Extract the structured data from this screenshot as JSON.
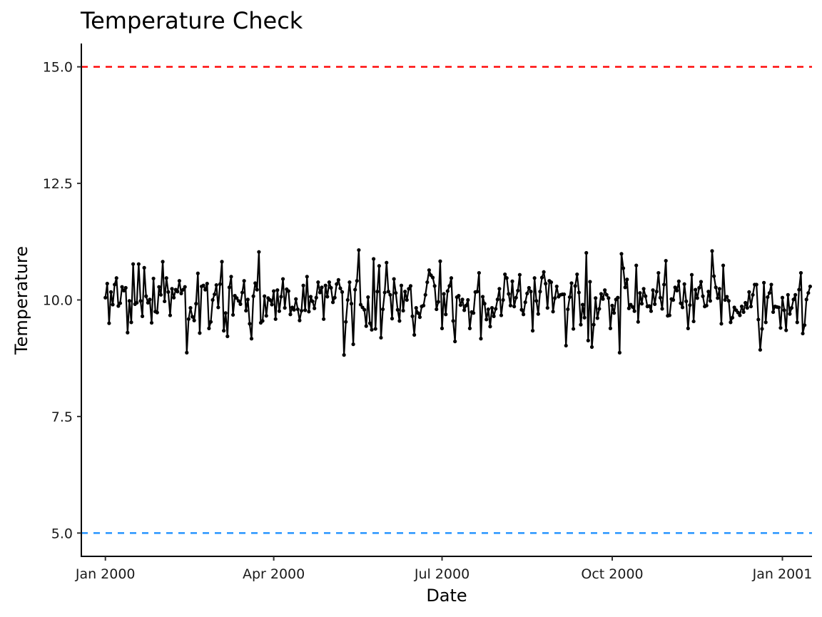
{
  "chart_data": {
    "type": "line",
    "title": "Temperature Check",
    "xlabel": "Date",
    "ylabel": "Temperature",
    "x_start": "2000-01-01",
    "x_ticks": [
      {
        "date": "2000-01-01",
        "label": "Jan 2000"
      },
      {
        "date": "2000-04-01",
        "label": "Apr 2000"
      },
      {
        "date": "2000-07-01",
        "label": "Jul 2000"
      },
      {
        "date": "2000-10-01",
        "label": "Oct 2000"
      },
      {
        "date": "2001-01-01",
        "label": "Jan 2001"
      }
    ],
    "xlim": [
      "1999-12-19",
      "2001-01-17"
    ],
    "ylim": [
      4.5,
      15.5
    ],
    "y_ticks": [
      5.0,
      7.5,
      10.0,
      12.5,
      15.0
    ],
    "y_tick_labels": [
      "5.0",
      "7.5",
      "10.0",
      "12.5",
      "15.0"
    ],
    "grid": false,
    "reference_lines": [
      {
        "y": 15.0,
        "color": "#ff0000",
        "style": "dashed"
      },
      {
        "y": 5.0,
        "color": "#1e90ff",
        "style": "dashed"
      }
    ],
    "series": [
      {
        "color": "#000000",
        "y": [
          10.05,
          10.35,
          9.5,
          10.17,
          9.9,
          10.33,
          10.47,
          9.87,
          9.93,
          10.28,
          10.2,
          10.26,
          9.3,
          9.98,
          9.52,
          10.77,
          9.91,
          9.94,
          10.77,
          9.98,
          9.65,
          10.69,
          10.08,
          9.94,
          10.01,
          9.51,
          10.46,
          9.75,
          9.73,
          10.28,
          10.11,
          10.82,
          9.97,
          10.47,
          10.17,
          9.67,
          10.24,
          10.05,
          10.22,
          10.18,
          10.41,
          10.14,
          10.22,
          10.28,
          8.87,
          9.59,
          9.83,
          9.64,
          9.56,
          9.92,
          10.57,
          9.29,
          10.29,
          10.31,
          10.22,
          10.35,
          9.39,
          9.53,
          10.0,
          10.12,
          10.32,
          9.84,
          10.34,
          10.82,
          9.34,
          9.72,
          9.22,
          10.27,
          10.5,
          9.68,
          10.09,
          10.04,
          9.98,
          9.91,
          10.16,
          10.41,
          9.77,
          10.01,
          9.49,
          9.17,
          10.08,
          10.36,
          10.22,
          11.03,
          9.51,
          9.55,
          10.08,
          9.66,
          10.04,
          10.0,
          9.9,
          10.19,
          9.59,
          10.21,
          9.76,
          10.07,
          10.45,
          9.83,
          10.23,
          10.19,
          9.69,
          9.84,
          9.79,
          10.02,
          9.8,
          9.56,
          9.77,
          10.31,
          9.78,
          10.5,
          9.75,
          10.07,
          9.97,
          9.82,
          10.05,
          10.38,
          10.16,
          10.27,
          9.59,
          10.31,
          10.07,
          10.38,
          10.26,
          9.95,
          10.05,
          10.34,
          10.43,
          10.25,
          10.17,
          8.82,
          9.53,
          10.0,
          10.38,
          9.92,
          9.05,
          10.22,
          10.41,
          11.07,
          9.9,
          9.84,
          9.79,
          9.44,
          10.06,
          9.5,
          9.36,
          10.88,
          9.38,
          10.18,
          10.73,
          9.19,
          9.8,
          10.16,
          10.8,
          10.18,
          10.11,
          9.6,
          10.45,
          10.15,
          9.79,
          9.55,
          10.31,
          9.77,
          10.18,
          10.0,
          10.24,
          10.3,
          9.65,
          9.25,
          9.83,
          9.72,
          9.63,
          9.86,
          9.88,
          10.11,
          10.38,
          10.64,
          10.53,
          10.48,
          10.3,
          9.8,
          9.96,
          10.83,
          9.39,
          10.13,
          9.69,
          10.19,
          10.3,
          10.47,
          9.55,
          9.11,
          10.06,
          10.09,
          9.89,
          10.01,
          9.78,
          9.88,
          10.0,
          9.39,
          9.74,
          9.72,
          10.17,
          10.18,
          10.58,
          9.17,
          10.07,
          9.92,
          9.58,
          9.8,
          9.43,
          9.83,
          9.65,
          9.81,
          10.01,
          10.24,
          9.67,
          10.0,
          10.55,
          10.47,
          10.13,
          9.88,
          10.4,
          9.86,
          10.05,
          10.2,
          10.54,
          9.79,
          9.69,
          9.95,
          10.14,
          10.26,
          10.18,
          9.34,
          10.47,
          9.98,
          9.7,
          10.18,
          10.48,
          10.6,
          10.35,
          9.83,
          10.41,
          10.38,
          9.75,
          10.04,
          10.29,
          10.07,
          10.11,
          10.12,
          10.12,
          9.02,
          9.8,
          10.06,
          10.36,
          9.38,
          10.3,
          10.55,
          10.16,
          9.47,
          9.9,
          9.62,
          11.01,
          9.13,
          10.39,
          8.99,
          9.47,
          10.04,
          9.61,
          9.81,
          10.13,
          10.02,
          10.21,
          10.11,
          10.04,
          9.39,
          9.88,
          9.72,
          10.01,
          10.05,
          8.87,
          10.99,
          10.68,
          10.27,
          10.44,
          9.82,
          9.9,
          9.85,
          9.76,
          10.74,
          9.53,
          10.15,
          9.92,
          10.24,
          10.08,
          9.86,
          9.87,
          9.76,
          10.21,
          9.91,
          10.18,
          10.58,
          10.05,
          9.81,
          10.33,
          10.84,
          9.66,
          9.67,
          10.02,
          10.0,
          10.27,
          10.2,
          10.4,
          9.93,
          9.84,
          10.34,
          9.97,
          9.39,
          9.89,
          10.54,
          9.54,
          10.22,
          10.04,
          10.26,
          10.39,
          10.08,
          9.86,
          9.88,
          10.18,
          9.98,
          11.05,
          10.51,
          10.27,
          10.04,
          10.24,
          9.49,
          10.74,
          10.0,
          10.07,
          9.98,
          9.52,
          9.62,
          9.84,
          9.78,
          9.73,
          9.67,
          9.86,
          9.74,
          9.94,
          9.83,
          10.17,
          9.86,
          10.11,
          10.33,
          10.33,
          9.58,
          8.93,
          9.38,
          10.37,
          9.52,
          10.06,
          10.15,
          10.33,
          9.74,
          9.86,
          9.85,
          9.84,
          9.4,
          10.05,
          9.78,
          9.35,
          10.11,
          9.7,
          9.83,
          10.01,
          10.11,
          9.52,
          10.22,
          10.58,
          9.28,
          9.46,
          10.01,
          10.15,
          10.29
        ]
      }
    ]
  }
}
